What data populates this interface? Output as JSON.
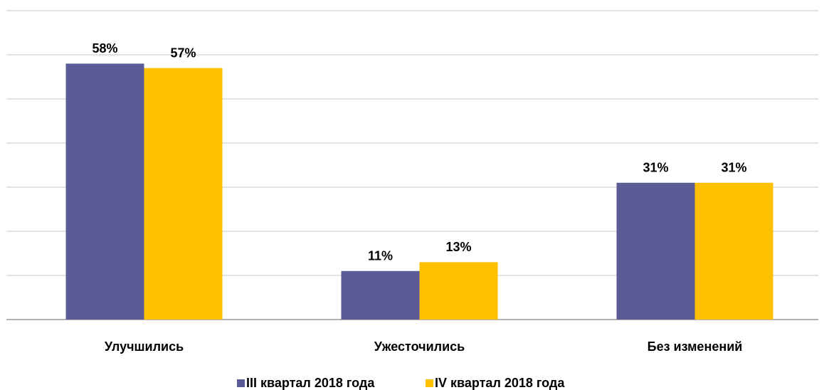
{
  "chart_data": {
    "type": "bar",
    "categories": [
      "Улучшились",
      "Ужесточились",
      "Без изменений"
    ],
    "series": [
      {
        "name": "III квартал 2018 года",
        "color": "#5b5b96",
        "values": [
          58,
          11,
          31
        ],
        "value_labels": [
          "58%",
          "11%",
          "31%"
        ]
      },
      {
        "name": "IV квартал 2018 года",
        "color": "#ffc000",
        "values": [
          57,
          13,
          31
        ],
        "value_labels": [
          "57%",
          "13%",
          "31%"
        ]
      }
    ],
    "ylim": [
      0,
      70
    ],
    "yticks": [
      0,
      10,
      20,
      30,
      40,
      50,
      60,
      70
    ],
    "grid": true,
    "legend": "bottom"
  }
}
